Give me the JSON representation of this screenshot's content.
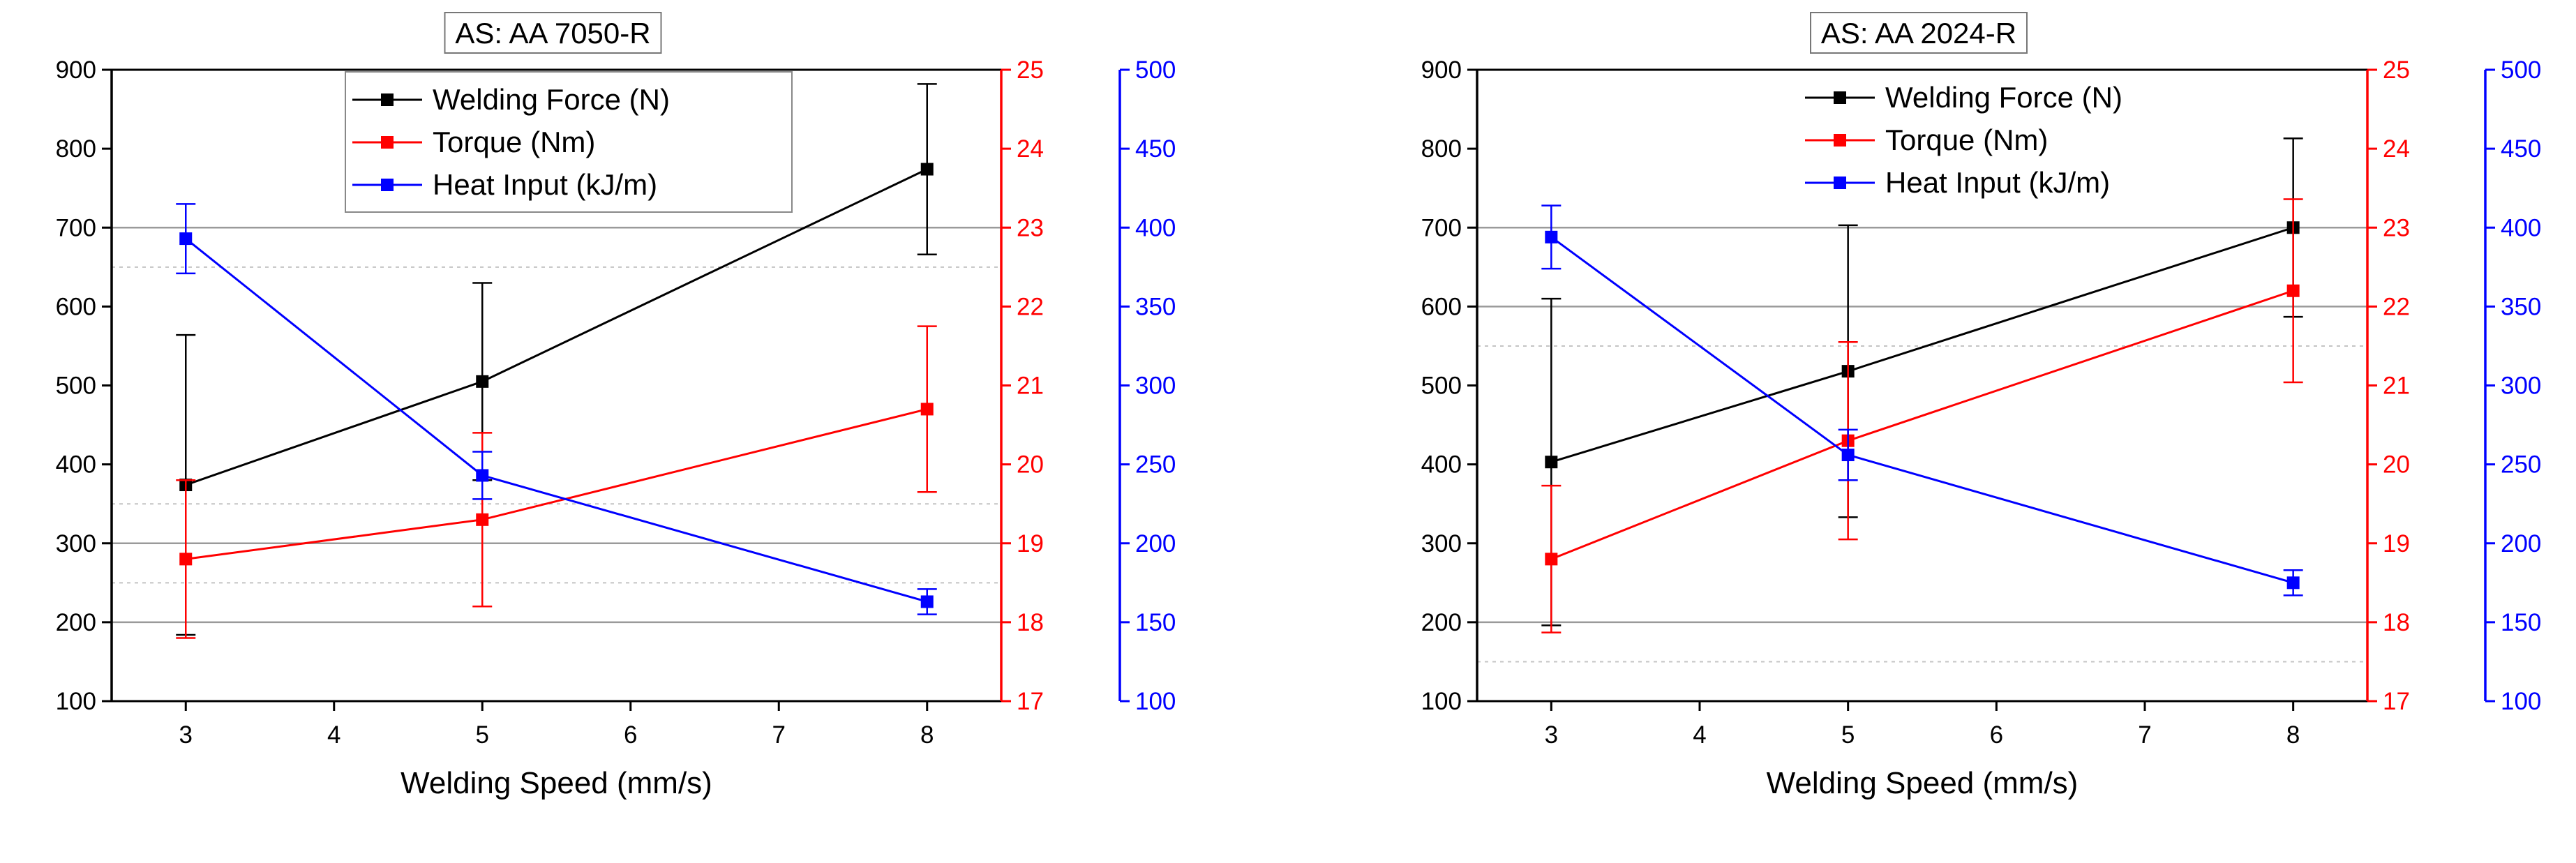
{
  "chart_data": [
    {
      "type": "line",
      "title": "AS: AA 7050-R",
      "xlabel": "Welding Speed (mm/s)",
      "x": [
        3,
        5,
        8
      ],
      "xlim": [
        2.5,
        8.5
      ],
      "xticks": [
        3,
        4,
        5,
        6,
        7,
        8
      ],
      "axes": [
        {
          "id": "y1",
          "side": "left",
          "color": "#000000",
          "ylim": [
            100,
            900
          ],
          "ticks": [
            100,
            200,
            300,
            400,
            500,
            600,
            700,
            800,
            900
          ]
        },
        {
          "id": "y2",
          "side": "right",
          "color": "#ff0000",
          "ylim": [
            17,
            25
          ],
          "ticks": [
            17,
            18,
            19,
            20,
            21,
            22,
            23,
            24,
            25
          ]
        },
        {
          "id": "y3",
          "side": "right-offset",
          "color": "#0000ff",
          "ylim": [
            100,
            500
          ],
          "ticks": [
            100,
            150,
            200,
            250,
            300,
            350,
            400,
            450,
            500
          ]
        }
      ],
      "gridlines": {
        "solid": [
          900,
          700,
          300,
          200
        ],
        "dotted": [
          650,
          350,
          250
        ]
      },
      "legend_position": "top-center",
      "series": [
        {
          "name": "Welding Force (N)",
          "axis": "y1",
          "color": "#000000",
          "values": [
            374,
            505,
            774
          ],
          "errors": [
            190,
            125,
            108
          ]
        },
        {
          "name": "Torque (Nm)",
          "axis": "y2",
          "color": "#ff0000",
          "values": [
            18.8,
            19.3,
            20.7
          ],
          "errors": [
            1.0,
            1.1,
            1.05
          ]
        },
        {
          "name": "Heat Input (kJ/m)",
          "axis": "y3",
          "color": "#0000ff",
          "values": [
            393,
            243,
            163
          ],
          "errors": [
            22,
            15,
            8
          ]
        }
      ]
    },
    {
      "type": "line",
      "title": "AS: AA 2024-R",
      "xlabel": "Welding Speed (mm/s)",
      "x": [
        3,
        5,
        8
      ],
      "xlim": [
        2.5,
        8.5
      ],
      "xticks": [
        3,
        4,
        5,
        6,
        7,
        8
      ],
      "axes": [
        {
          "id": "y1",
          "side": "left",
          "color": "#000000",
          "ylim": [
            100,
            900
          ],
          "ticks": [
            100,
            200,
            300,
            400,
            500,
            600,
            700,
            800,
            900
          ]
        },
        {
          "id": "y2",
          "side": "right",
          "color": "#ff0000",
          "ylim": [
            17,
            25
          ],
          "ticks": [
            17,
            18,
            19,
            20,
            21,
            22,
            23,
            24,
            25
          ]
        },
        {
          "id": "y3",
          "side": "right-offset",
          "color": "#0000ff",
          "ylim": [
            100,
            500
          ],
          "ticks": [
            100,
            150,
            200,
            250,
            300,
            350,
            400,
            450,
            500
          ]
        }
      ],
      "gridlines": {
        "solid": [
          700,
          600,
          200
        ],
        "dotted": [
          550,
          150
        ]
      },
      "legend_position": "top-center",
      "series": [
        {
          "name": "Welding Force (N)",
          "axis": "y1",
          "color": "#000000",
          "values": [
            403,
            518,
            700
          ],
          "errors": [
            207,
            185,
            113
          ]
        },
        {
          "name": "Torque (Nm)",
          "axis": "y2",
          "color": "#ff0000",
          "values": [
            18.8,
            20.3,
            22.2
          ],
          "errors": [
            0.93,
            1.25,
            1.16
          ]
        },
        {
          "name": "Heat Input (kJ/m)",
          "axis": "y3",
          "color": "#0000ff",
          "values": [
            394,
            256,
            175
          ],
          "errors": [
            20,
            16,
            8
          ]
        }
      ]
    }
  ]
}
